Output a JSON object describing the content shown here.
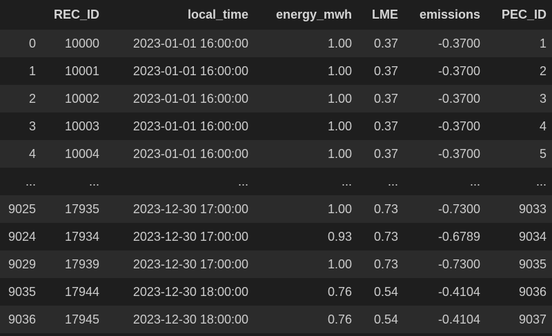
{
  "columns": [
    "",
    "REC_ID",
    "local_time",
    "energy_mwh",
    "LME",
    "emissions",
    "PEC_ID"
  ],
  "rows": [
    [
      "0",
      "10000",
      "2023-01-01 16:00:00",
      "1.00",
      "0.37",
      "-0.3700",
      "1"
    ],
    [
      "1",
      "10001",
      "2023-01-01 16:00:00",
      "1.00",
      "0.37",
      "-0.3700",
      "2"
    ],
    [
      "2",
      "10002",
      "2023-01-01 16:00:00",
      "1.00",
      "0.37",
      "-0.3700",
      "3"
    ],
    [
      "3",
      "10003",
      "2023-01-01 16:00:00",
      "1.00",
      "0.37",
      "-0.3700",
      "4"
    ],
    [
      "4",
      "10004",
      "2023-01-01 16:00:00",
      "1.00",
      "0.37",
      "-0.3700",
      "5"
    ],
    [
      "...",
      "...",
      "...",
      "...",
      "...",
      "...",
      "..."
    ],
    [
      "9025",
      "17935",
      "2023-12-30 17:00:00",
      "1.00",
      "0.73",
      "-0.7300",
      "9033"
    ],
    [
      "9024",
      "17934",
      "2023-12-30 17:00:00",
      "0.93",
      "0.73",
      "-0.6789",
      "9034"
    ],
    [
      "9029",
      "17939",
      "2023-12-30 17:00:00",
      "1.00",
      "0.73",
      "-0.7300",
      "9035"
    ],
    [
      "9035",
      "17944",
      "2023-12-30 18:00:00",
      "0.76",
      "0.54",
      "-0.4104",
      "9036"
    ],
    [
      "9036",
      "17945",
      "2023-12-30 18:00:00",
      "0.76",
      "0.54",
      "-0.4104",
      "9037"
    ]
  ]
}
